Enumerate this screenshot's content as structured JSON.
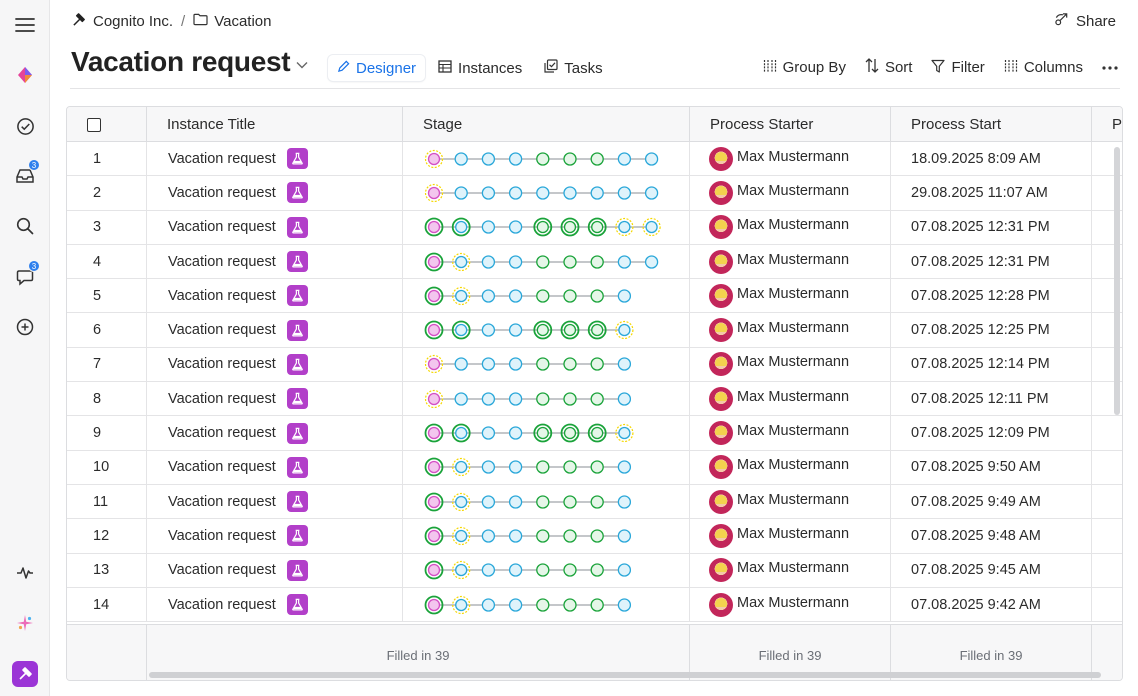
{
  "breadcrumb": {
    "org": "Cognito Inc.",
    "separator": "/",
    "folder": "Vacation"
  },
  "share_label": "Share",
  "page_title": "Vacation request",
  "tabs": [
    {
      "label": "Designer",
      "icon": "pencil-icon",
      "active": true
    },
    {
      "label": "Instances",
      "icon": "table-icon",
      "active": false
    },
    {
      "label": "Tasks",
      "icon": "tasks-icon",
      "active": false
    }
  ],
  "toolbar": {
    "group_by": "Group By",
    "sort": "Sort",
    "filter": "Filter",
    "columns": "Columns"
  },
  "sidebar": {
    "inbox_badge": "3",
    "chat_badge": "3"
  },
  "table": {
    "columns": [
      "Instance Title",
      "Stage",
      "Process Starter",
      "Process Start",
      "P"
    ],
    "rows": [
      {
        "n": "1",
        "title": "Vacation request",
        "stage": [
          "pp",
          "b",
          "b",
          "b",
          "g",
          "g",
          "g",
          "b",
          "b"
        ],
        "starter": "Max Mustermann",
        "start": "18.09.2025 8:09 AM"
      },
      {
        "n": "2",
        "title": "Vacation request",
        "stage": [
          "pp",
          "b",
          "b",
          "b",
          "b",
          "b",
          "b",
          "b",
          "b"
        ],
        "starter": "Max Mustermann",
        "start": "29.08.2025 11:07 AM"
      },
      {
        "n": "3",
        "title": "Vacation request",
        "stage": [
          "pd",
          "bd",
          "b",
          "b",
          "gd",
          "gd",
          "gd",
          "yb",
          "yb"
        ],
        "starter": "Max Mustermann",
        "start": "07.08.2025 12:31 PM"
      },
      {
        "n": "4",
        "title": "Vacation request",
        "stage": [
          "pd",
          "yb",
          "b",
          "b",
          "g",
          "g",
          "g",
          "b",
          "b"
        ],
        "starter": "Max Mustermann",
        "start": "07.08.2025 12:31 PM"
      },
      {
        "n": "5",
        "title": "Vacation request",
        "stage": [
          "pd",
          "yb",
          "b",
          "b",
          "g",
          "g",
          "g",
          "b"
        ],
        "starter": "Max Mustermann",
        "start": "07.08.2025 12:28 PM"
      },
      {
        "n": "6",
        "title": "Vacation request",
        "stage": [
          "pd",
          "bd",
          "b",
          "b",
          "gd",
          "gd",
          "gd",
          "yb"
        ],
        "starter": "Max Mustermann",
        "start": "07.08.2025 12:25 PM"
      },
      {
        "n": "7",
        "title": "Vacation request",
        "stage": [
          "pp",
          "b",
          "b",
          "b",
          "g",
          "g",
          "g",
          "b"
        ],
        "starter": "Max Mustermann",
        "start": "07.08.2025 12:14 PM"
      },
      {
        "n": "8",
        "title": "Vacation request",
        "stage": [
          "pp",
          "b",
          "b",
          "b",
          "g",
          "g",
          "g",
          "b"
        ],
        "starter": "Max Mustermann",
        "start": "07.08.2025 12:11 PM"
      },
      {
        "n": "9",
        "title": "Vacation request",
        "stage": [
          "pd",
          "bd",
          "b",
          "b",
          "gd",
          "gd",
          "gd",
          "yb"
        ],
        "starter": "Max Mustermann",
        "start": "07.08.2025 12:09 PM"
      },
      {
        "n": "10",
        "title": "Vacation request",
        "stage": [
          "pd",
          "yb",
          "b",
          "b",
          "g",
          "g",
          "g",
          "b"
        ],
        "starter": "Max Mustermann",
        "start": "07.08.2025 9:50 AM"
      },
      {
        "n": "11",
        "title": "Vacation request",
        "stage": [
          "pd",
          "yb",
          "b",
          "b",
          "g",
          "g",
          "g",
          "b"
        ],
        "starter": "Max Mustermann",
        "start": "07.08.2025 9:49 AM"
      },
      {
        "n": "12",
        "title": "Vacation request",
        "stage": [
          "pd",
          "yb",
          "b",
          "b",
          "g",
          "g",
          "g",
          "b"
        ],
        "starter": "Max Mustermann",
        "start": "07.08.2025 9:48 AM"
      },
      {
        "n": "13",
        "title": "Vacation request",
        "stage": [
          "pd",
          "yb",
          "b",
          "b",
          "g",
          "g",
          "g",
          "b"
        ],
        "starter": "Max Mustermann",
        "start": "07.08.2025 9:45 AM"
      },
      {
        "n": "14",
        "title": "Vacation request",
        "stage": [
          "pd",
          "yb",
          "b",
          "b",
          "g",
          "g",
          "g",
          "b"
        ],
        "starter": "Max Mustermann",
        "start": "07.08.2025 9:42 AM"
      }
    ],
    "footer": {
      "stage": "Filled in 39",
      "starter": "Filled in 39",
      "start": "Filled in 39"
    }
  },
  "colors": {
    "accent": "#1a73e8",
    "flask": "#b23fc9",
    "node_blue": "#29a7d9",
    "node_green": "#1aa33a",
    "node_pink": "#d44fc4",
    "node_yellow": "#f5d800"
  }
}
